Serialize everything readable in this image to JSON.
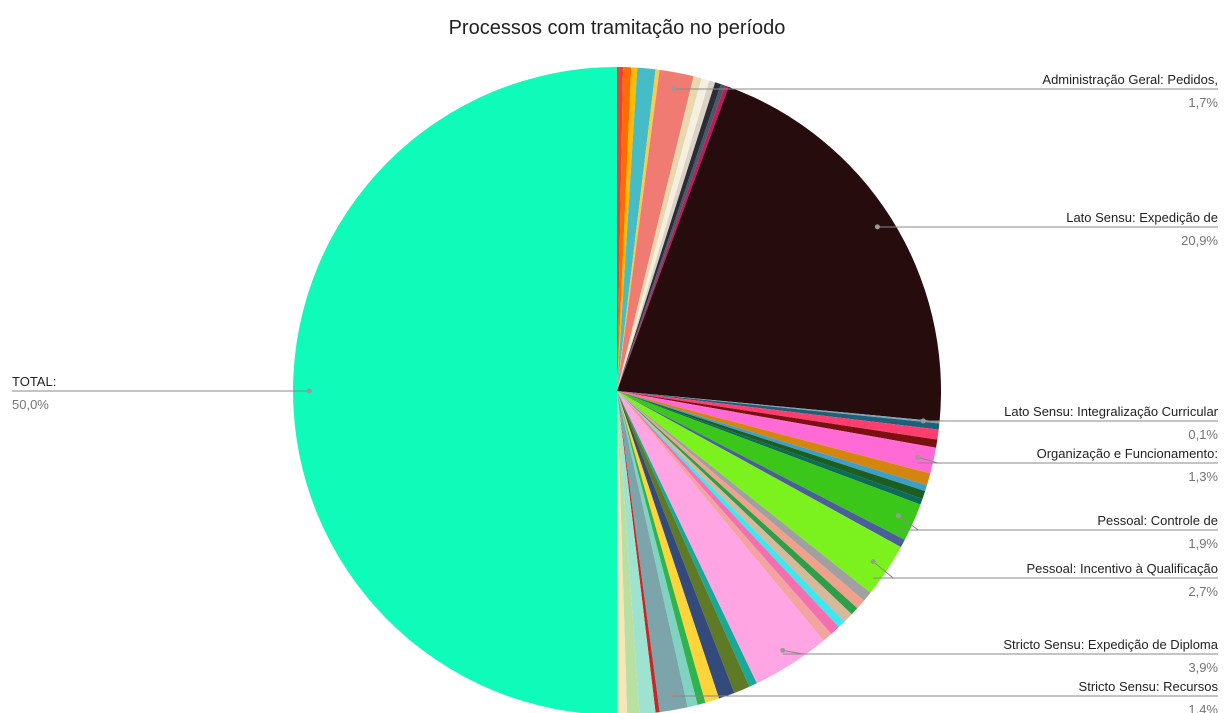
{
  "chart_data": {
    "type": "pie",
    "title": "Processos com tramitação no período",
    "categories": [
      null,
      null,
      null,
      null,
      null,
      "Administração Geral: Pedidos,",
      null,
      null,
      null,
      null,
      null,
      null,
      "Lato Sensu: Expedição de",
      "Lato Sensu: Integralização Curricular",
      null,
      null,
      null,
      "Organização e Funcionamento:",
      null,
      null,
      null,
      null,
      "Pessoal: Controle de",
      null,
      "Pessoal: Incentivo à Qualificação",
      null,
      null,
      null,
      null,
      null,
      null,
      null,
      "Stricto Sensu: Expedição de Diploma",
      null,
      null,
      null,
      null,
      null,
      null,
      "Stricto Sensu: Recursos",
      null,
      null,
      null,
      null,
      "TOTAL:"
    ],
    "values": [
      0.3,
      0.4,
      0.3,
      0.9,
      0.2,
      1.7,
      0.4,
      0.4,
      0.3,
      0.3,
      0.2,
      0.2,
      20.9,
      0.1,
      0.3,
      0.5,
      0.4,
      1.3,
      0.6,
      0.3,
      0.4,
      0.3,
      1.9,
      0.4,
      2.7,
      0.5,
      0.5,
      0.4,
      0.5,
      0.4,
      0.5,
      0.5,
      3.9,
      0.4,
      0.8,
      0.8,
      0.7,
      0.4,
      0.5,
      1.4,
      0.2,
      0.8,
      0.6,
      0.5,
      50.0
    ],
    "value_labels": [
      null,
      null,
      null,
      null,
      null,
      "1,7%",
      null,
      null,
      null,
      null,
      null,
      null,
      "20,9%",
      "0,1%",
      null,
      null,
      null,
      "1,3%",
      null,
      null,
      null,
      null,
      "1,9%",
      null,
      "2,7%",
      null,
      null,
      null,
      null,
      null,
      null,
      null,
      "3,9%",
      null,
      null,
      null,
      null,
      null,
      null,
      "1,4%",
      null,
      null,
      null,
      null,
      "50,0%"
    ],
    "colors": [
      "#ea4335",
      "#ff6d01",
      "#fbbc04",
      "#46bdc6",
      "#f7cb4d",
      "#f07b72",
      "#e8d8b0",
      "#f4efe0",
      "#d9d2c5",
      "#2b2b3a",
      "#455a64",
      "#c2185b",
      "#260c0c",
      "#7fa6b8",
      "#1f5f7a",
      "#ff3d6e",
      "#7a1010",
      "#ff6ad5",
      "#d4850d",
      "#3d9ec9",
      "#1b5e20",
      "#0c6b5a",
      "#3ac71a",
      "#4b5d9a",
      "#7bf21d",
      "#a0a0a0",
      "#f0a18c",
      "#2e9e4a",
      "#d8b89a",
      "#3ee8ee",
      "#f26fb0",
      "#f4a4a0",
      "#ffa5e3",
      "#18a99a",
      "#5f7a25",
      "#354a7c",
      "#ffd43b",
      "#2fb34c",
      "#7fd3c0",
      "#7ca4ab",
      "#c62828",
      "#9de3d0",
      "#b8e0a0",
      "#f5e6b8",
      "#0ffbb9"
    ]
  }
}
